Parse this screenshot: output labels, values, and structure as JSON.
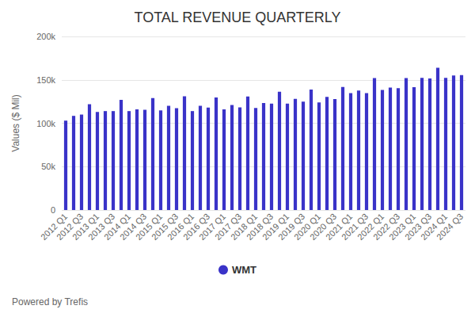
{
  "chart_data": {
    "type": "bar",
    "title": "TOTAL REVENUE QUARTERLY",
    "y_label": "Values ($ Mil)",
    "annotation": "Powered by Trefis",
    "categories": [
      "2012 Q1",
      null,
      "2012 Q3",
      null,
      "2013 Q1",
      null,
      "2013 Q3",
      null,
      "2014 Q1",
      null,
      "2014 Q3",
      null,
      "2015 Q1",
      null,
      "2015 Q3",
      null,
      "2016 Q1",
      null,
      "2016 Q3",
      null,
      "2017 Q1",
      null,
      "2017 Q3",
      null,
      "2018 Q1",
      null,
      "2018 Q3",
      null,
      "2019 Q1",
      null,
      "2019 Q3",
      null,
      "2020 Q1",
      null,
      "2020 Q3",
      null,
      "2021 Q1",
      null,
      "2021 Q3",
      null,
      "2022 Q1",
      null,
      "2022 Q3",
      null,
      "2023 Q1",
      null,
      "2023 Q3",
      null,
      "2024 Q1",
      null,
      "2024 Q3"
    ],
    "series": [
      {
        "name": "WMT",
        "color": "#3a33c8",
        "values": [
          103000,
          108500,
          110000,
          122000,
          113000,
          114000,
          114000,
          127000,
          114000,
          116000,
          115500,
          129000,
          114800,
          120000,
          117400,
          131000,
          114000,
          120000,
          118000,
          129700,
          116000,
          120900,
          118200,
          130900,
          117500,
          123400,
          122700,
          136300,
          122700,
          128000,
          124900,
          138800,
          124000,
          130400,
          127900,
          141700,
          134600,
          137700,
          134700,
          152100,
          138300,
          141000,
          140500,
          152100,
          141600,
          152300,
          151500,
          164000,
          152300,
          155000,
          155500
        ]
      }
    ],
    "ylim": [
      0,
      200000
    ],
    "yticks": [
      0,
      {
        "value": 50000,
        "label": "50k"
      },
      {
        "value": 100000,
        "label": "100k"
      },
      {
        "value": 150000,
        "label": "150k"
      },
      {
        "value": 200000,
        "label": "200k"
      }
    ],
    "grid": true,
    "legend": "bottom"
  }
}
